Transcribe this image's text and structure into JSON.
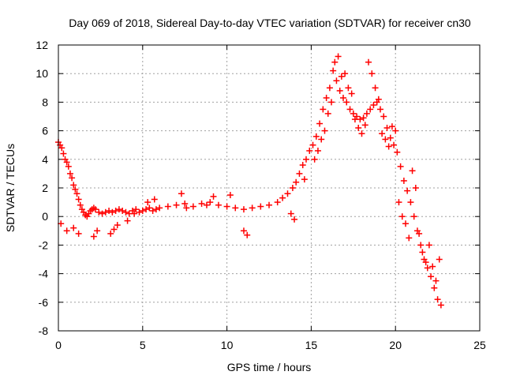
{
  "chart_data": {
    "type": "scatter",
    "title": "Day 069 of 2018, Sidereal Day-to-day VTEC variation (SDTVAR) for receiver cn30",
    "xlabel": "GPS time / hours",
    "ylabel": "SDTVAR / TECUs",
    "xlim": [
      0,
      25
    ],
    "ylim": [
      -8,
      12
    ],
    "xticks": [
      0,
      5,
      10,
      15,
      20,
      25
    ],
    "yticks": [
      -8,
      -6,
      -4,
      -2,
      0,
      2,
      4,
      6,
      8,
      10,
      12
    ],
    "grid": true,
    "marker": "+",
    "series_color": "#ff0000",
    "series": [
      {
        "name": "SDTVAR",
        "x": [
          0.0,
          0.1,
          0.2,
          0.3,
          0.4,
          0.5,
          0.6,
          0.7,
          0.8,
          0.9,
          1.0,
          1.1,
          1.2,
          1.3,
          1.4,
          1.5,
          1.6,
          1.7,
          1.8,
          1.9,
          2.0,
          2.1,
          2.2,
          2.4,
          2.6,
          2.8,
          3.0,
          3.2,
          3.4,
          3.6,
          3.8,
          4.0,
          4.2,
          4.4,
          4.6,
          4.8,
          5.0,
          5.2,
          5.4,
          5.6,
          5.8,
          6.0,
          6.5,
          7.0,
          7.5,
          8.0,
          8.5,
          9.0,
          9.5,
          10.0,
          10.5,
          11.0,
          11.5,
          12.0,
          12.5,
          13.0,
          13.3,
          13.6,
          13.9,
          14.1,
          14.3,
          14.5,
          14.7,
          14.9,
          15.1,
          15.3,
          15.5,
          15.7,
          15.9,
          16.1,
          16.3,
          16.5,
          16.7,
          16.9,
          17.1,
          17.3,
          17.5,
          17.7,
          17.9,
          18.1,
          18.3,
          18.5,
          18.7,
          18.9,
          19.1,
          19.3,
          19.5,
          19.7,
          19.9,
          20.1,
          20.3,
          20.5,
          20.7,
          20.9,
          21.1,
          21.3,
          21.5,
          21.7,
          21.9,
          22.1,
          22.3,
          22.5,
          22.7,
          0.15,
          0.5,
          0.9,
          1.2,
          2.1,
          2.3,
          3.1,
          3.3,
          3.5,
          4.1,
          4.5,
          5.3,
          5.7,
          7.3,
          7.6,
          8.8,
          9.2,
          10.2,
          11.0,
          11.2,
          13.8,
          14.0,
          14.6,
          15.2,
          15.4,
          15.6,
          15.8,
          16.0,
          16.2,
          16.4,
          16.6,
          16.8,
          17.0,
          17.2,
          17.4,
          17.6,
          17.8,
          18.0,
          18.2,
          18.4,
          18.6,
          18.8,
          19.0,
          19.2,
          19.4,
          19.6,
          19.8,
          20.0,
          20.2,
          20.4,
          20.6,
          20.8,
          21.0,
          21.2,
          21.4,
          21.6,
          21.8,
          22.0,
          22.2,
          22.4,
          22.6
        ],
        "y": [
          5.2,
          5.0,
          4.8,
          4.4,
          4.0,
          3.8,
          3.5,
          3.0,
          2.7,
          2.2,
          1.9,
          1.6,
          1.2,
          0.8,
          0.5,
          0.3,
          0.1,
          0.0,
          0.2,
          0.4,
          0.5,
          0.6,
          0.5,
          0.3,
          0.2,
          0.3,
          0.4,
          0.3,
          0.4,
          0.5,
          0.4,
          0.3,
          0.2,
          0.4,
          0.5,
          0.3,
          0.4,
          0.5,
          0.6,
          0.4,
          0.5,
          0.6,
          0.7,
          0.8,
          0.9,
          0.7,
          0.9,
          1.0,
          0.8,
          0.7,
          0.6,
          0.5,
          0.6,
          0.7,
          0.8,
          1.0,
          1.3,
          1.6,
          2.0,
          2.4,
          3.0,
          3.6,
          4.0,
          4.6,
          5.0,
          5.6,
          6.5,
          7.5,
          8.3,
          9.0,
          10.2,
          9.5,
          8.8,
          8.3,
          8.0,
          7.5,
          7.2,
          7.0,
          6.8,
          6.9,
          7.2,
          7.5,
          7.8,
          8.0,
          7.5,
          7.0,
          6.2,
          5.5,
          5.0,
          4.5,
          3.5,
          2.5,
          1.8,
          1.0,
          0.0,
          -1.0,
          -2.0,
          -3.0,
          -3.6,
          -4.2,
          -5.0,
          -5.8,
          -6.2,
          -0.5,
          -1.0,
          -0.8,
          -1.2,
          -1.4,
          -1.0,
          -1.2,
          -0.9,
          -0.6,
          -0.3,
          0.2,
          1.0,
          1.2,
          1.6,
          0.6,
          0.8,
          1.4,
          1.5,
          -1.0,
          -1.3,
          0.2,
          -0.2,
          2.6,
          4.0,
          4.6,
          5.4,
          6.0,
          7.2,
          8.0,
          10.8,
          11.2,
          9.8,
          10.0,
          9.0,
          8.6,
          6.8,
          6.2,
          5.8,
          6.4,
          10.8,
          10.0,
          9.0,
          8.2,
          5.8,
          5.4,
          4.9,
          6.3,
          6.0,
          1.0,
          0.0,
          -0.5,
          -1.5,
          3.2,
          2.0,
          -1.2,
          -2.5,
          -3.2,
          -2.0,
          -3.5,
          -4.5,
          -3.0
        ]
      }
    ]
  }
}
